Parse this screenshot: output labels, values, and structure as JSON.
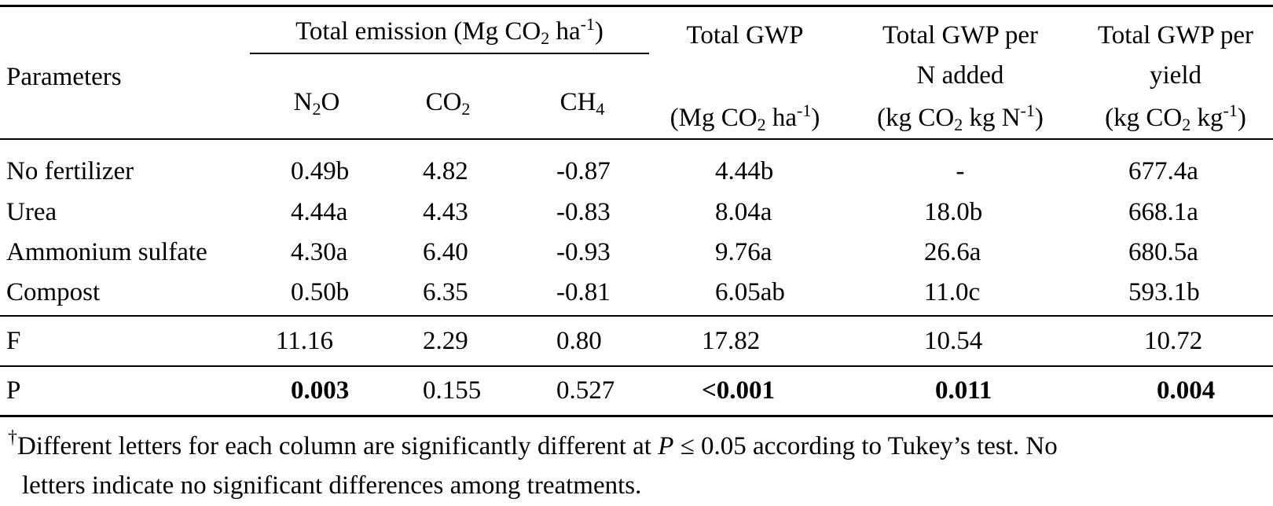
{
  "header": {
    "parameters": "Parameters",
    "total_emission_prefix": "Total emission (Mg CO",
    "total_emission_sub": "2",
    "total_emission_mid": " ha",
    "total_emission_sup": "-1",
    "total_emission_suffix": ")",
    "n2o_a": "N",
    "n2o_sub": "2",
    "n2o_b": "O",
    "co2_a": "CO",
    "co2_sub": "2",
    "ch4_a": "CH",
    "ch4_sub": "4",
    "gwp_line1": "Total GWP",
    "gwp_unit_a": "(Mg CO",
    "gwp_unit_sub": "2",
    "gwp_unit_b": " ha",
    "gwp_unit_sup": "-1",
    "gwp_unit_c": ")",
    "gwpn_line1": "Total GWP per",
    "gwpn_line2": "N added",
    "gwpn_unit_a": "(kg CO",
    "gwpn_unit_sub": "2",
    "gwpn_unit_b": " kg N",
    "gwpn_unit_sup": "-1",
    "gwpn_unit_c": ")",
    "gwpy_line1": "Total GWP per",
    "gwpy_line2": "yield",
    "gwpy_unit_a": "(kg CO",
    "gwpy_unit_sub": "2",
    "gwpy_unit_b": " kg",
    "gwpy_unit_sup": "-1",
    "gwpy_unit_c": ")"
  },
  "rows": [
    {
      "param": "No fertilizer",
      "n2o": "0.49b",
      "co2": "4.82",
      "ch4": "-0.87",
      "gwp": "4.44b",
      "gwpn": "-",
      "gwpy": "677.4a"
    },
    {
      "param": "Urea",
      "n2o": "4.44a",
      "co2": "4.43",
      "ch4": "-0.83",
      "gwp": "8.04a",
      "gwpn": "18.0b",
      "gwpy": "668.1a"
    },
    {
      "param": "Ammonium sulfate",
      "n2o": "4.30a",
      "co2": "6.40",
      "ch4": "-0.93",
      "gwp": "9.76a",
      "gwpn": "26.6a",
      "gwpy": "680.5a"
    },
    {
      "param": "Compost",
      "n2o": "0.50b",
      "co2": "6.35",
      "ch4": "-0.81",
      "gwp": "6.05ab",
      "gwpn": "11.0c",
      "gwpy": "593.1b"
    }
  ],
  "f_row": {
    "param": "F",
    "n2o": "11.16",
    "co2": "2.29",
    "ch4": "0.80",
    "gwp": "17.82",
    "gwpn": "10.54",
    "gwpy": "10.72"
  },
  "p_row": {
    "param": "P",
    "n2o": "0.003",
    "co2": "0.155",
    "ch4": "0.527",
    "gwp": "<0.001",
    "gwpn": "0.011",
    "gwpy": "0.004"
  },
  "footnote": {
    "dagger": "†",
    "line1_a": "Different letters for each column are significantly different at ",
    "p_symbol": "P",
    "line1_b": " ≤ 0.05 according to Tukey’s test. No",
    "line2": "letters indicate no significant differences among treatments."
  }
}
